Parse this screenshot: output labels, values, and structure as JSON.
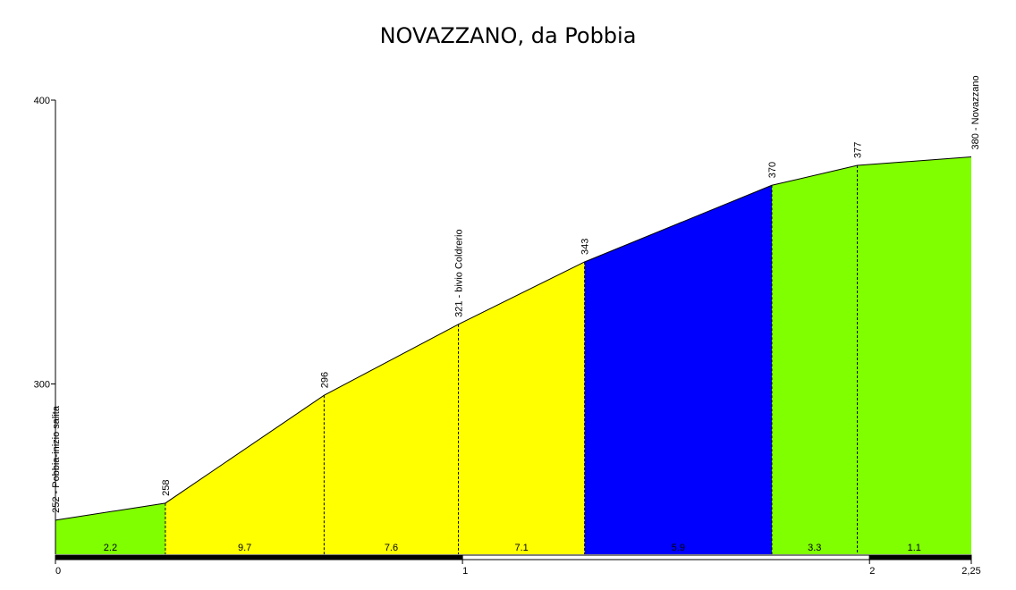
{
  "chart_data": {
    "type": "area",
    "title": "NOVAZZANO, da Pobbia",
    "xlabel": "",
    "ylabel": "",
    "xlim": [
      0,
      2.25
    ],
    "ylim": [
      240,
      400
    ],
    "y_ticks": [
      {
        "value": 300,
        "label": "300"
      },
      {
        "value": 400,
        "label": "400"
      }
    ],
    "x_ticks": [
      {
        "value": 0,
        "label": "0"
      },
      {
        "value": 1,
        "label": "1"
      },
      {
        "value": 2,
        "label": "2"
      },
      {
        "value": 2.25,
        "label": "2,25"
      }
    ],
    "points": [
      {
        "x": 0.0,
        "y": 252,
        "label": "252 - Pobbia-inizio salita"
      },
      {
        "x": 0.27,
        "y": 258,
        "label": "258"
      },
      {
        "x": 0.66,
        "y": 296,
        "label": "296"
      },
      {
        "x": 0.99,
        "y": 321,
        "label": "321 - bivio Coldrerio"
      },
      {
        "x": 1.3,
        "y": 343,
        "label": "343"
      },
      {
        "x": 1.76,
        "y": 370,
        "label": "370"
      },
      {
        "x": 1.97,
        "y": 377,
        "label": "377"
      },
      {
        "x": 2.25,
        "y": 380,
        "label": "380 - Novazzano"
      }
    ],
    "segments": [
      {
        "start": 0,
        "end": 1,
        "gradient": "2.2",
        "color": "#80ff00"
      },
      {
        "start": 1,
        "end": 2,
        "gradient": "9.7",
        "color": "#ffff00"
      },
      {
        "start": 2,
        "end": 3,
        "gradient": "7.6",
        "color": "#ffff00"
      },
      {
        "start": 3,
        "end": 4,
        "gradient": "7.1",
        "color": "#ffff00"
      },
      {
        "start": 4,
        "end": 5,
        "gradient": "5.9",
        "color": "#0000ff"
      },
      {
        "start": 5,
        "end": 6,
        "gradient": "3.3",
        "color": "#80ff00"
      },
      {
        "start": 6,
        "end": 7,
        "gradient": "1.1",
        "color": "#80ff00"
      }
    ]
  }
}
